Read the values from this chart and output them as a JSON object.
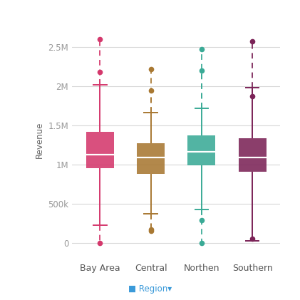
{
  "regions": [
    "Bay Area",
    "Central",
    "Northen",
    "Southern"
  ],
  "colors": [
    "#d4386c",
    "#a87832",
    "#3aaa96",
    "#7b2357"
  ],
  "boxes": [
    {
      "q1": 950000,
      "median": 1130000,
      "q3": 1420000,
      "whisker_low": 230000,
      "whisker_high": 2020000,
      "outliers_low": [
        0
      ],
      "outliers_high": [
        2180000,
        2600000
      ]
    },
    {
      "q1": 880000,
      "median": 1090000,
      "q3": 1270000,
      "whisker_low": 370000,
      "whisker_high": 1660000,
      "outliers_low": [
        150000,
        175000
      ],
      "outliers_high": [
        1950000,
        2220000
      ]
    },
    {
      "q1": 990000,
      "median": 1160000,
      "q3": 1370000,
      "whisker_low": 430000,
      "whisker_high": 1720000,
      "outliers_low": [
        0,
        290000
      ],
      "outliers_high": [
        2200000,
        2470000
      ]
    },
    {
      "q1": 910000,
      "median": 1090000,
      "q3": 1340000,
      "whisker_low": 30000,
      "whisker_high": 1980000,
      "outliers_low": [
        55000
      ],
      "outliers_high": [
        1870000,
        2570000
      ]
    }
  ],
  "ylabel": "Revenue",
  "ylim": [
    -220000,
    2850000
  ],
  "yticks": [
    0,
    500000,
    1000000,
    1500000,
    2000000,
    2500000
  ],
  "yticklabels": [
    "0",
    "500k",
    "1M",
    "1.5M",
    "2M",
    "2.5M"
  ],
  "background_color": "#ffffff",
  "grid_color": "#d8d8d8",
  "box_width": 0.55,
  "linewidth": 1.4
}
